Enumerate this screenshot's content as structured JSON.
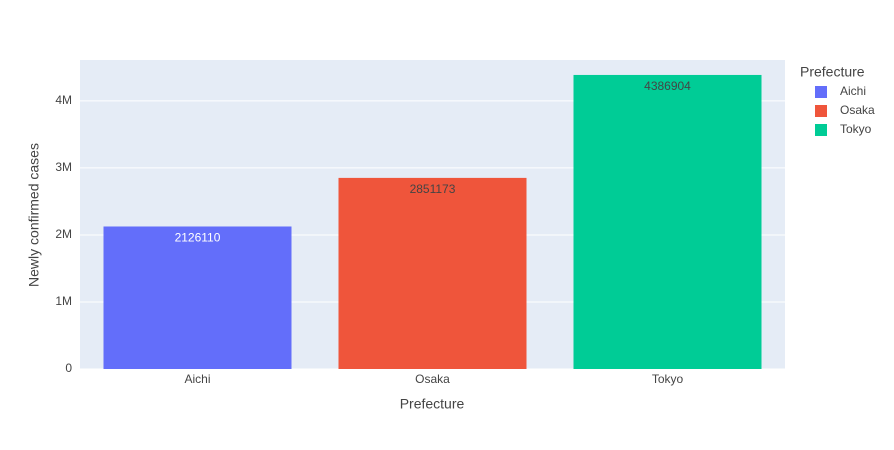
{
  "chart_data": {
    "type": "bar",
    "categories": [
      "Aichi",
      "Osaka",
      "Tokyo"
    ],
    "values": [
      2126110,
      2851173,
      4386904
    ],
    "colors": [
      "#636efa",
      "#ef553b",
      "#00cc96"
    ],
    "x_label": "Prefecture",
    "y_label": "Newly confirmed cases",
    "legend_title": "Prefecture",
    "legend": "top-right outside",
    "ylim": [
      0,
      4610000
    ],
    "yticks": [
      0,
      {
        "value": 1000000,
        "label": "1M"
      },
      {
        "value": 2000000,
        "label": "2M"
      },
      {
        "value": 3000000,
        "label": "3M"
      },
      {
        "value": 4000000,
        "label": "4M"
      }
    ],
    "grid": true
  }
}
